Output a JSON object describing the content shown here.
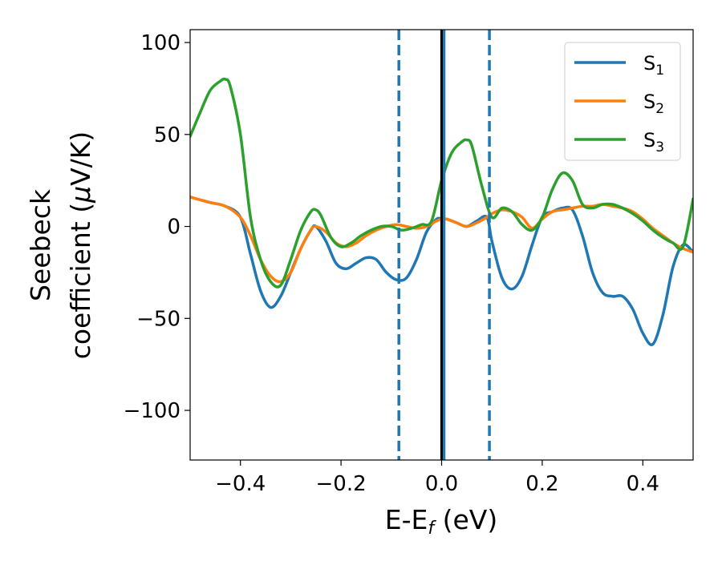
{
  "chart_data": {
    "type": "line",
    "xlim": [
      -0.5,
      0.5
    ],
    "ylim": [
      -127,
      107
    ],
    "x_ticks": [
      -0.4,
      -0.2,
      0.0,
      0.2,
      0.4
    ],
    "x_tick_labels": [
      "−0.4",
      "−0.2",
      "0.0",
      "0.2",
      "0.4"
    ],
    "y_ticks": [
      100,
      50,
      0,
      -50,
      -100
    ],
    "y_tick_labels": [
      "100",
      "50",
      "0",
      "−50",
      "−100"
    ],
    "xlabel": {
      "main": "E-E",
      "sub": "f",
      "rest": " (eV)"
    },
    "ylabel": {
      "line1": "Seebeck",
      "line2_pre": "coefficient  (",
      "line2_mu": "μ",
      "line2_post": "V/K)"
    },
    "legend": {
      "position": "top-right"
    },
    "vlines": [
      {
        "x": 0.0,
        "color": "#000000",
        "style": "solid"
      },
      {
        "x": 0.005,
        "color": "#1f77b4",
        "style": "solid"
      },
      {
        "x": -0.085,
        "color": "#1f77b4",
        "style": "dashed"
      },
      {
        "x": 0.095,
        "color": "#1f77b4",
        "style": "dashed"
      }
    ],
    "series": [
      {
        "name": "S",
        "sub": "1",
        "color": "#1f77b4",
        "x": [
          -0.5,
          -0.46,
          -0.43,
          -0.4,
          -0.38,
          -0.36,
          -0.34,
          -0.32,
          -0.3,
          -0.28,
          -0.26,
          -0.25,
          -0.23,
          -0.21,
          -0.19,
          -0.17,
          -0.15,
          -0.13,
          -0.11,
          -0.09,
          -0.07,
          -0.05,
          -0.03,
          -0.01,
          0.0,
          0.01,
          0.03,
          0.05,
          0.07,
          0.09,
          0.1,
          0.12,
          0.14,
          0.16,
          0.18,
          0.2,
          0.22,
          0.24,
          0.26,
          0.28,
          0.3,
          0.32,
          0.34,
          0.36,
          0.38,
          0.4,
          0.42,
          0.44,
          0.46,
          0.48,
          0.5
        ],
        "y": [
          16,
          13,
          11,
          5,
          -15,
          -35,
          -44,
          -38,
          -25,
          -12,
          -2,
          0,
          -8,
          -20,
          -23,
          -20,
          -17,
          -18,
          -25,
          -29,
          -28,
          -18,
          -3,
          4,
          4,
          4,
          2,
          0,
          3,
          5,
          -8,
          -28,
          -34,
          -27,
          -10,
          5,
          8,
          10,
          9,
          -5,
          -25,
          -36,
          -38,
          -38,
          -45,
          -58,
          -64,
          -48,
          -22,
          -10,
          -14
        ]
      },
      {
        "name": "S",
        "sub": "2",
        "color": "#ff7f0e",
        "x": [
          -0.5,
          -0.46,
          -0.43,
          -0.4,
          -0.38,
          -0.36,
          -0.34,
          -0.32,
          -0.3,
          -0.28,
          -0.26,
          -0.25,
          -0.23,
          -0.21,
          -0.19,
          -0.17,
          -0.15,
          -0.13,
          -0.11,
          -0.09,
          -0.07,
          -0.05,
          -0.03,
          -0.01,
          0.0,
          0.01,
          0.03,
          0.05,
          0.07,
          0.09,
          0.1,
          0.12,
          0.14,
          0.16,
          0.18,
          0.2,
          0.22,
          0.24,
          0.26,
          0.28,
          0.3,
          0.32,
          0.34,
          0.36,
          0.38,
          0.4,
          0.42,
          0.44,
          0.46,
          0.48,
          0.5
        ],
        "y": [
          16,
          13,
          11,
          5,
          -5,
          -18,
          -27,
          -30,
          -25,
          -12,
          -2,
          0,
          -3,
          -9,
          -11,
          -9,
          -5,
          -2,
          0,
          1,
          0,
          -1,
          0,
          3,
          4,
          4,
          2,
          0,
          2,
          5,
          7,
          9,
          8,
          5,
          -1,
          4,
          8,
          9,
          10,
          11,
          11,
          12,
          11,
          10,
          8,
          4,
          -1,
          -5,
          -9,
          -12,
          -14
        ]
      },
      {
        "name": "S",
        "sub": "3",
        "color": "#2ca02c",
        "x": [
          -0.5,
          -0.48,
          -0.46,
          -0.44,
          -0.43,
          -0.42,
          -0.4,
          -0.38,
          -0.36,
          -0.34,
          -0.32,
          -0.3,
          -0.28,
          -0.26,
          -0.25,
          -0.24,
          -0.22,
          -0.2,
          -0.18,
          -0.16,
          -0.14,
          -0.12,
          -0.1,
          -0.08,
          -0.06,
          -0.04,
          -0.02,
          0.0,
          0.02,
          0.04,
          0.05,
          0.06,
          0.08,
          0.1,
          0.12,
          0.14,
          0.16,
          0.18,
          0.2,
          0.22,
          0.24,
          0.26,
          0.28,
          0.3,
          0.32,
          0.34,
          0.36,
          0.38,
          0.4,
          0.42,
          0.44,
          0.46,
          0.48,
          0.5
        ],
        "y": [
          49,
          62,
          74,
          79,
          80,
          76,
          50,
          5,
          -18,
          -30,
          -32,
          -18,
          -2,
          8,
          9,
          6,
          -6,
          -11,
          -9,
          -5,
          -2,
          0,
          0,
          -2,
          -1,
          1,
          3,
          25,
          40,
          46,
          47,
          44,
          22,
          5,
          10,
          8,
          1,
          -2,
          5,
          20,
          29,
          25,
          12,
          10,
          12,
          12,
          10,
          7,
          3,
          -2,
          -6,
          -9,
          -11,
          15
        ]
      }
    ]
  }
}
